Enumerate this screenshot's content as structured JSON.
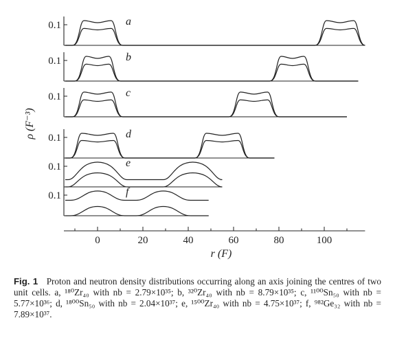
{
  "chart_data": {
    "type": "line",
    "xlabel": "r (F)",
    "ylabel": "ρ (F⁻³)",
    "xlim": [
      -15,
      118
    ],
    "xticks": [
      0,
      20,
      40,
      60,
      80,
      100
    ],
    "ytick_label": "0.1",
    "ytick_value": 0.1,
    "panels": [
      {
        "label": "a",
        "x_end": 118,
        "cells": [
          0,
          107
        ],
        "plateau_halfwidth": 6,
        "edge_width": 5,
        "series": [
          {
            "peak": 0.12,
            "dip": 0.11
          },
          {
            "peak": 0.082,
            "dip": 0.075
          }
        ]
      },
      {
        "label": "b",
        "x_end": 115,
        "cells": [
          0,
          86
        ],
        "plateau_halfwidth": 5,
        "edge_width": 5,
        "series": [
          {
            "peak": 0.12,
            "dip": 0.11
          },
          {
            "peak": 0.082,
            "dip": 0.075
          }
        ]
      },
      {
        "label": "c",
        "x_end": 110,
        "cells": [
          0,
          69
        ],
        "plateau_halfwidth": 6,
        "edge_width": 5,
        "series": [
          {
            "peak": 0.12,
            "dip": 0.11
          },
          {
            "peak": 0.082,
            "dip": 0.075
          }
        ]
      },
      {
        "label": "d",
        "x_end": 78,
        "cells": [
          0,
          55
        ],
        "plateau_halfwidth": 7,
        "edge_width": 5,
        "series": [
          {
            "peak": 0.12,
            "dip": 0.11
          },
          {
            "peak": 0.085,
            "dip": 0.078
          }
        ]
      },
      {
        "label": "e",
        "x_end": 54,
        "cells": [
          0,
          42
        ],
        "plateau_halfwidth": 6,
        "edge_width": 7,
        "series": [
          {
            "peak": 0.12,
            "baseline": 0.035
          },
          {
            "peak": 0.068,
            "baseline": 0.0
          }
        ]
      },
      {
        "label": "f",
        "x_end": 49,
        "cells": [
          0,
          29
        ],
        "plateau_halfwidth": 3,
        "edge_width": 9,
        "series": [
          {
            "peak": 0.12,
            "baseline": 0.075
          },
          {
            "peak": 0.045,
            "baseline": 0.0
          }
        ]
      }
    ]
  },
  "caption": {
    "fig_label": "Fig. 1",
    "text": "Proton and neutron density distributions occurring along an axis joining the centres of two unit cells. a, ¹⁸⁰Zr₄₀ with nb = 2.79×10³⁵; b, ³²⁰Zr₄₀ with nb = 8.79×10³⁵; c, ¹¹⁰⁰Sn₅₀ with nb = 5.77×10³⁶; d, ¹⁸⁰⁰Sn₅₀ with nb = 2.04×10³⁷; e, ¹⁵⁰⁰Zr₄₀ with nb = 4.75×10³⁷; f, ⁹⁸²Ge₃₂ with nb = 7.89×10³⁷."
  }
}
